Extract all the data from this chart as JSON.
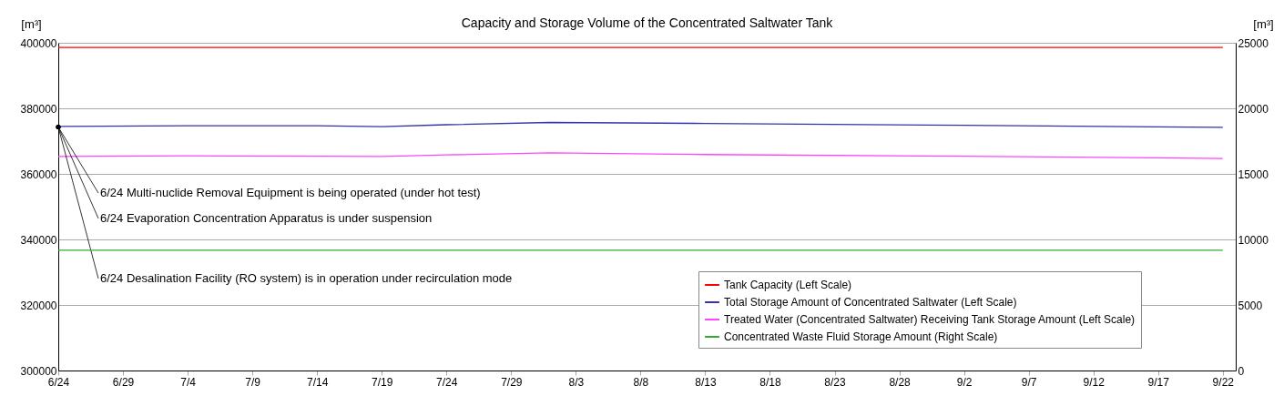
{
  "chart_data": {
    "type": "line",
    "title": "Capacity and Storage Volume of the Concentrated Saltwater Tank",
    "ylabel": "[m³]",
    "y2label": "[m³]",
    "xlim": [
      "--06-24",
      "--09-23"
    ],
    "xticks": [
      {
        "value": "--06-24",
        "label": "6/24"
      },
      {
        "value": "--06-29",
        "label": "6/29"
      },
      {
        "value": "--07-04",
        "label": "7/4"
      },
      {
        "value": "--07-09",
        "label": "7/9"
      },
      {
        "value": "--07-14",
        "label": "7/14"
      },
      {
        "value": "--07-19",
        "label": "7/19"
      },
      {
        "value": "--07-24",
        "label": "7/24"
      },
      {
        "value": "--07-29",
        "label": "7/29"
      },
      {
        "value": "--08-03",
        "label": "8/3"
      },
      {
        "value": "--08-08",
        "label": "8/8"
      },
      {
        "value": "--08-13",
        "label": "8/13"
      },
      {
        "value": "--08-18",
        "label": "8/18"
      },
      {
        "value": "--08-23",
        "label": "8/23"
      },
      {
        "value": "--08-28",
        "label": "8/28"
      },
      {
        "value": "--09-02",
        "label": "9/2"
      },
      {
        "value": "--09-07",
        "label": "9/7"
      },
      {
        "value": "--09-12",
        "label": "9/12"
      },
      {
        "value": "--09-17",
        "label": "9/17"
      },
      {
        "value": "--09-22",
        "label": "9/22"
      }
    ],
    "ylim": [
      300000,
      400000
    ],
    "yticks": [
      300000,
      320000,
      340000,
      360000,
      380000,
      400000
    ],
    "y2lim": [
      0,
      25000
    ],
    "y2ticks": [
      0,
      5000,
      10000,
      15000,
      20000,
      25000
    ],
    "grid": "y",
    "legend": "bottom right",
    "series": [
      {
        "name": "Tank Capacity (Left Scale)",
        "color": "#ff0000",
        "x": [
          "--06-24",
          "--09-22"
        ],
        "values": [
          398600,
          398600
        ]
      },
      {
        "name": "Total Storage Amount of Concentrated Saltwater (Left Scale)",
        "color": "#3333aa",
        "x": [
          "--06-24",
          "--07-04",
          "--07-14",
          "--07-19",
          "--07-24",
          "--08-01",
          "--08-13",
          "--09-02",
          "--09-22"
        ],
        "values": [
          374500,
          374700,
          374700,
          374400,
          375000,
          375700,
          375400,
          374800,
          374200
        ]
      },
      {
        "name": "Treated Water (Concentrated Saltwater) Receiving Tank Storage Amount (Left Scale)",
        "color": "#ff44ff",
        "x": [
          "--06-24",
          "--07-04",
          "--07-14",
          "--07-19",
          "--07-24",
          "--08-01",
          "--08-13",
          "--09-02",
          "--09-22"
        ],
        "values": [
          365300,
          365500,
          365400,
          365300,
          365800,
          366400,
          365900,
          365400,
          364700
        ]
      },
      {
        "name": "Concentrated Waste Fluid Storage Amount (Right Scale)",
        "color": "#33aa33",
        "axis": "y2",
        "x": [
          "--06-24",
          "--09-22"
        ],
        "values": [
          9170,
          9170
        ]
      }
    ],
    "annotations": [
      {
        "text": "6/24 Multi-nuclide Removal Equipment is being operated (under hot test)",
        "x": "--06-24",
        "y": 374300
      },
      {
        "text": "6/24 Evaporation Concentration Apparatus is under suspension",
        "x": "--06-24",
        "y": 374300
      },
      {
        "text": "6/24 Desalination Facility (RO system) is in operation under recirculation mode",
        "x": "--06-24",
        "y": 374300
      }
    ]
  }
}
